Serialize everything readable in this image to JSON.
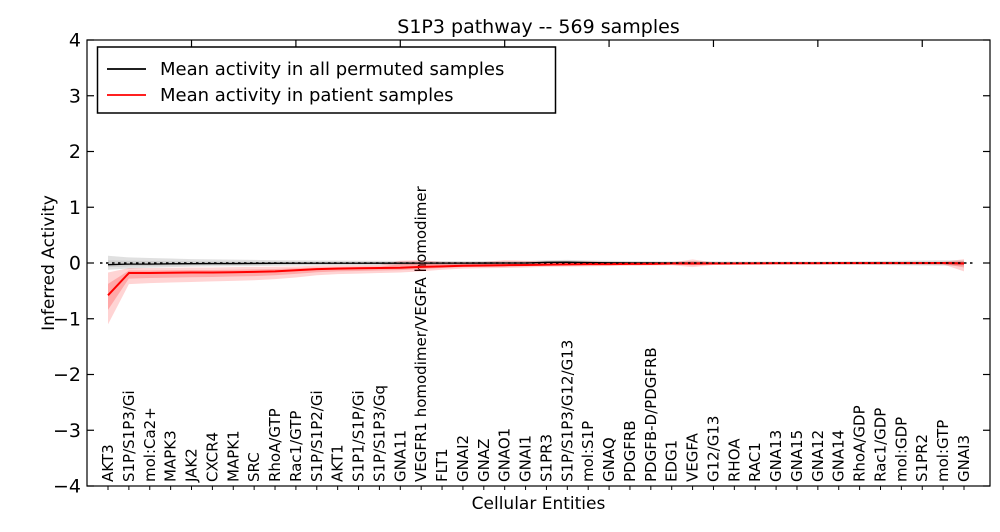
{
  "page": {
    "background": "#ffffff"
  },
  "chart_data": {
    "type": "line",
    "title": "S1P3 pathway -- 569 samples",
    "xlabel": "Cellular Entities",
    "ylabel": "Inferred Activity",
    "ylim": [
      -4,
      4
    ],
    "ytick_values": [
      4,
      3,
      2,
      1,
      0,
      -1,
      -2,
      -3,
      -4
    ],
    "ytick_labels": [
      "4",
      "3",
      "2",
      "1",
      "0",
      "−1",
      "−2",
      "−3",
      "−4"
    ],
    "grid": false,
    "zero_reference_line": {
      "value": 0,
      "style": "dashed",
      "color": "#000000"
    },
    "legend_position": "upper left",
    "categories": [
      "AKT3",
      "S1P/S1P3/Gi",
      "mol:Ca2+",
      "MAPK3",
      "JAK2",
      "CXCR4",
      "MAPK1",
      "SRC",
      "RhoA/GTP",
      "Rac1/GTP",
      "S1P/S1P2/Gi",
      "AKT1",
      "S1P1/S1P/Gi",
      "S1P/S1P3/Gq",
      "GNA11",
      "VEGFR1 homodimer/VEGFA homodimer",
      "FLT1",
      "GNAI2",
      "GNAZ",
      "GNAO1",
      "GNAI1",
      "S1PR3",
      "S1P/S1P3/G12/G13",
      "mol:S1P",
      "GNAQ",
      "PDGFRB",
      "PDGFB-D/PDGFRB",
      "EDG1",
      "VEGFA",
      "G12/G13",
      "RHOA",
      "RAC1",
      "GNA13",
      "GNA15",
      "GNA12",
      "GNA14",
      "RhoA/GDP",
      "Rac1/GDP",
      "mol:GDP",
      "S1PR2",
      "mol:GTP",
      "GNAI3"
    ],
    "series": [
      {
        "name": "Mean activity in all permuted samples",
        "color": "#000000",
        "band_color": "#999999",
        "mean": [
          -0.03,
          -0.02,
          -0.02,
          -0.015,
          -0.012,
          -0.01,
          -0.01,
          -0.008,
          -0.006,
          -0.005,
          -0.005,
          -0.004,
          -0.004,
          -0.003,
          -0.003,
          -0.002,
          -0.002,
          -0.002,
          -0.001,
          0,
          0,
          0.012,
          0.015,
          0.008,
          0.004,
          0.002,
          0.002,
          0.001,
          0,
          0,
          0,
          0,
          0,
          0,
          0,
          0,
          0,
          0,
          0,
          0,
          0,
          0
        ],
        "hi": [
          0.13,
          0.1,
          0.09,
          0.08,
          0.07,
          0.065,
          0.06,
          0.055,
          0.05,
          0.047,
          0.045,
          0.043,
          0.04,
          0.04,
          0.038,
          0.036,
          0.035,
          0.034,
          0.033,
          0.032,
          0.035,
          0.05,
          0.055,
          0.045,
          0.04,
          0.035,
          0.032,
          0.03,
          0.035,
          0.03,
          0.028,
          0.028,
          0.028,
          0.028,
          0.028,
          0.03,
          0.032,
          0.036,
          0.04,
          0.045,
          0.05,
          0.045
        ],
        "lo": [
          -0.12,
          -0.1,
          -0.085,
          -0.075,
          -0.065,
          -0.06,
          -0.058,
          -0.055,
          -0.05,
          -0.048,
          -0.045,
          -0.042,
          -0.04,
          -0.04,
          -0.038,
          -0.036,
          -0.035,
          -0.034,
          -0.033,
          -0.032,
          -0.032,
          -0.035,
          -0.04,
          -0.038,
          -0.035,
          -0.033,
          -0.032,
          -0.03,
          -0.032,
          -0.03,
          -0.028,
          -0.028,
          -0.028,
          -0.028,
          -0.028,
          -0.03,
          -0.032,
          -0.036,
          -0.04,
          -0.044,
          -0.048,
          -0.045
        ]
      },
      {
        "name": "Mean activity in patient samples",
        "color": "#ff0000",
        "band_color": "#ff0000",
        "mean": [
          -0.58,
          -0.18,
          -0.18,
          -0.175,
          -0.17,
          -0.17,
          -0.165,
          -0.16,
          -0.15,
          -0.13,
          -0.11,
          -0.1,
          -0.095,
          -0.09,
          -0.085,
          -0.07,
          -0.06,
          -0.05,
          -0.045,
          -0.04,
          -0.035,
          -0.03,
          -0.025,
          -0.02,
          -0.02,
          -0.015,
          -0.015,
          -0.01,
          -0.01,
          -0.01,
          -0.008,
          -0.006,
          -0.005,
          -0.004,
          -0.004,
          -0.003,
          -0.003,
          -0.002,
          -0.002,
          -0.002,
          -0.001,
          -0.01
        ],
        "hi": [
          -0.17,
          -0.09,
          -0.09,
          -0.085,
          -0.08,
          -0.08,
          -0.075,
          -0.07,
          -0.065,
          -0.06,
          -0.05,
          -0.045,
          -0.04,
          -0.035,
          0.04,
          0.05,
          0.02,
          0.015,
          0.02,
          0.05,
          0.04,
          0.02,
          0.015,
          0.03,
          0.02,
          0.015,
          0.012,
          0.01,
          0.065,
          0.01,
          0.008,
          0.008,
          0.008,
          0.008,
          0.008,
          0.008,
          0.008,
          0.008,
          0.008,
          0.01,
          0.02,
          0.07
        ],
        "lo": [
          -1.1,
          -0.38,
          -0.36,
          -0.35,
          -0.34,
          -0.33,
          -0.32,
          -0.31,
          -0.29,
          -0.26,
          -0.22,
          -0.2,
          -0.19,
          -0.18,
          -0.17,
          -0.15,
          -0.12,
          -0.1,
          -0.095,
          -0.09,
          -0.08,
          -0.07,
          -0.065,
          -0.06,
          -0.055,
          -0.05,
          -0.045,
          -0.04,
          -0.075,
          -0.035,
          -0.03,
          -0.026,
          -0.022,
          -0.02,
          -0.02,
          -0.02,
          -0.02,
          -0.02,
          -0.02,
          -0.02,
          -0.025,
          -0.15
        ]
      }
    ]
  }
}
